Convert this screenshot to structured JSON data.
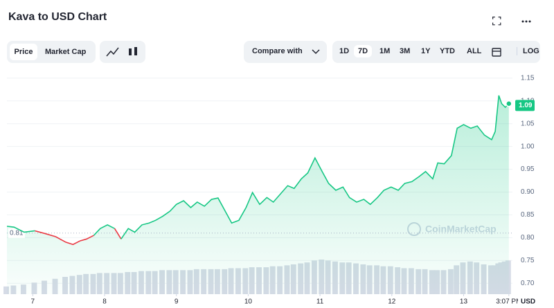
{
  "chart_data": {
    "type": "line",
    "title": "Kava to USD Chart",
    "x": [
      6.64,
      6.74,
      6.88,
      7.03,
      7.17,
      7.32,
      7.46,
      7.56,
      7.66,
      7.75,
      7.85,
      7.94,
      8.04,
      8.14,
      8.23,
      8.33,
      8.42,
      8.52,
      8.62,
      8.71,
      8.81,
      8.91,
      9.0,
      9.1,
      9.2,
      9.29,
      9.39,
      9.49,
      9.58,
      9.68,
      9.77,
      9.87,
      9.97,
      10.06,
      10.16,
      10.26,
      10.35,
      10.45,
      10.55,
      10.64,
      10.74,
      10.83,
      10.93,
      11.03,
      11.12,
      11.22,
      11.32,
      11.41,
      11.51,
      11.61,
      11.7,
      11.8,
      11.89,
      11.99,
      12.09,
      12.18,
      12.28,
      12.38,
      12.47,
      12.57,
      12.64,
      12.73,
      12.83,
      12.91,
      13.0,
      13.1,
      13.19,
      13.29,
      13.39,
      13.44,
      13.49,
      13.53,
      13.58,
      13.63
    ],
    "series": [
      {
        "name": "Price",
        "color": "#16c784",
        "below_color": "#ea3943",
        "values": [
          0.825,
          0.823,
          0.812,
          0.815,
          0.809,
          0.802,
          0.79,
          0.785,
          0.793,
          0.797,
          0.805,
          0.82,
          0.828,
          0.82,
          0.797,
          0.82,
          0.812,
          0.828,
          0.832,
          0.838,
          0.847,
          0.858,
          0.873,
          0.881,
          0.866,
          0.878,
          0.869,
          0.884,
          0.887,
          0.858,
          0.832,
          0.838,
          0.866,
          0.899,
          0.873,
          0.888,
          0.878,
          0.896,
          0.914,
          0.908,
          0.929,
          0.942,
          0.975,
          0.945,
          0.919,
          0.904,
          0.911,
          0.888,
          0.878,
          0.884,
          0.873,
          0.888,
          0.904,
          0.911,
          0.904,
          0.919,
          0.923,
          0.934,
          0.945,
          0.929,
          0.964,
          0.962,
          0.98,
          1.04,
          1.048,
          1.04,
          1.045,
          1.025,
          1.015,
          1.033,
          1.112,
          1.094,
          1.086,
          1.094
        ]
      }
    ],
    "volume": [
      8,
      9,
      10,
      12,
      14,
      16,
      18,
      19,
      20,
      21,
      21,
      22,
      22,
      22,
      22,
      23,
      23,
      24,
      24,
      24,
      25,
      25,
      25,
      25,
      25,
      26,
      26,
      26,
      26,
      26,
      27,
      27,
      27,
      28,
      28,
      28,
      29,
      29,
      30,
      31,
      32,
      33,
      35,
      36,
      35,
      34,
      33,
      33,
      32,
      31,
      30,
      30,
      29,
      29,
      28,
      27,
      27,
      26,
      26,
      25,
      25,
      25,
      26,
      30,
      33,
      34,
      33,
      31,
      30,
      30,
      32,
      33,
      34,
      35
    ],
    "reference": {
      "value": 0.81,
      "label": "0.81"
    },
    "current": {
      "value": 1.09,
      "label": "1.09"
    },
    "xlim": [
      6.64,
      13.68
    ],
    "xticks": [
      7,
      8,
      9,
      10,
      11,
      12,
      13,
      {
        "value": 13.63,
        "label": "3:07 PM"
      }
    ],
    "ylim": [
      0.676,
      1.165
    ],
    "yticks": [
      {
        "value": 0.7,
        "label": "0.70"
      },
      {
        "value": 0.75,
        "label": "0.75"
      },
      {
        "value": 0.8,
        "label": "0.80"
      },
      {
        "value": 0.85,
        "label": "0.85"
      },
      {
        "value": 0.9,
        "label": "0.90"
      },
      {
        "value": 0.95,
        "label": "0.95"
      },
      {
        "value": 1.0,
        "label": "1.00"
      },
      {
        "value": 1.05,
        "label": "1.05"
      },
      {
        "value": 1.1,
        "label": "1.10"
      },
      {
        "value": 1.15,
        "label": "1.15"
      }
    ],
    "y_unit": "USD",
    "grid": true,
    "watermark": "CoinMarketCap"
  },
  "controls": {
    "types": [
      "Price",
      "Market Cap"
    ],
    "compare": "Compare with",
    "ranges": [
      "1D",
      "7D",
      "1M",
      "3M",
      "1Y",
      "YTD",
      "ALL"
    ],
    "log": "LOG"
  }
}
